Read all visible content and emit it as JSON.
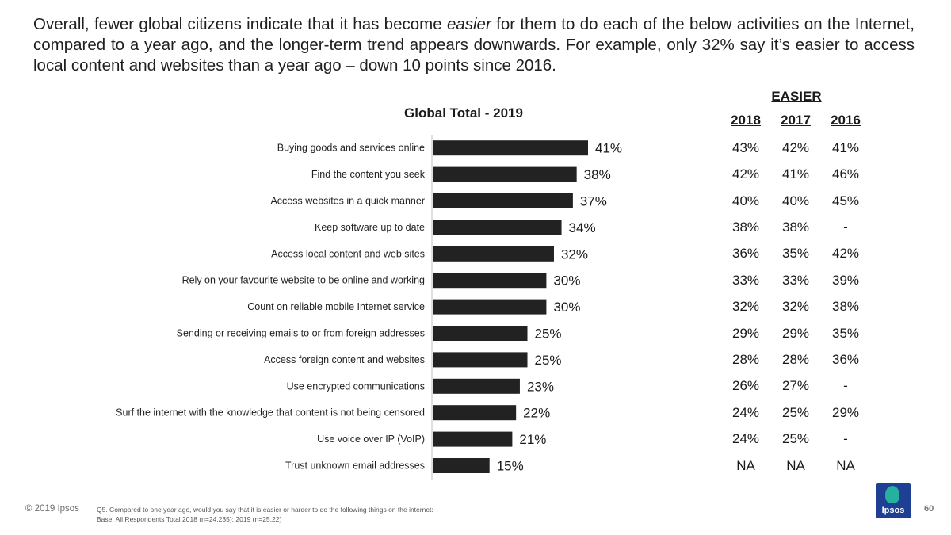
{
  "headline": {
    "part1": "Overall, fewer global citizens indicate that it has become ",
    "emphasis": "easier",
    "part2": " for them to do each of the below activities on the Internet, compared to a year ago, and the longer-term trend appears downwards. For example, only 32% say it’s easier to access local content and websites than a year ago – down 10 points since 2016."
  },
  "chart_data": {
    "type": "bar",
    "orientation": "horizontal",
    "title": "Global Total - 2019",
    "categories": [
      "Buying goods and services online",
      "Find the content you seek",
      "Access websites in a quick manner",
      "Keep software up to date",
      "Access local content and web sites",
      "Rely on your favourite website to be online and working",
      "Count on reliable mobile Internet service",
      "Sending or receiving emails to or from foreign addresses",
      "Access foreign content and websites",
      "Use encrypted communications",
      "Surf the internet with the knowledge that content is not being censored",
      "Use voice over IP (VoIP)",
      "Trust unknown email addresses"
    ],
    "values": [
      41,
      38,
      37,
      34,
      32,
      30,
      30,
      25,
      25,
      23,
      22,
      21,
      15
    ],
    "value_labels": [
      "41%",
      "38%",
      "37%",
      "34%",
      "32%",
      "30%",
      "30%",
      "25%",
      "25%",
      "23%",
      "22%",
      "21%",
      "15%"
    ],
    "xlim": [
      0,
      70
    ],
    "bar_color": "#222222",
    "grid": false
  },
  "trend_table": {
    "group_header": "EASIER",
    "columns": [
      "2018",
      "2017",
      "2016"
    ],
    "rows": [
      [
        "43%",
        "42%",
        "41%"
      ],
      [
        "42%",
        "41%",
        "46%"
      ],
      [
        "40%",
        "40%",
        "45%"
      ],
      [
        "38%",
        "38%",
        "-"
      ],
      [
        "36%",
        "35%",
        "42%"
      ],
      [
        "33%",
        "33%",
        "39%"
      ],
      [
        "32%",
        "32%",
        "38%"
      ],
      [
        "29%",
        "29%",
        "35%"
      ],
      [
        "28%",
        "28%",
        "36%"
      ],
      [
        "26%",
        "27%",
        "-"
      ],
      [
        "24%",
        "25%",
        "29%"
      ],
      [
        "24%",
        "25%",
        "-"
      ],
      [
        "NA",
        "NA",
        "NA"
      ]
    ]
  },
  "footer": {
    "copyright": "© 2019 Ipsos",
    "question": "Q5. Compared to one year ago, would you say that it is easier or harder to do the following things on the internet:",
    "base": "Base: All Respondents Total 2018 (n=24,235); 2019 (n=25,22)",
    "logo_text": "Ipsos",
    "page_number": "60"
  },
  "colors": {
    "logo_blue": "#1e3f93",
    "logo_teal": "#25b0a0"
  }
}
